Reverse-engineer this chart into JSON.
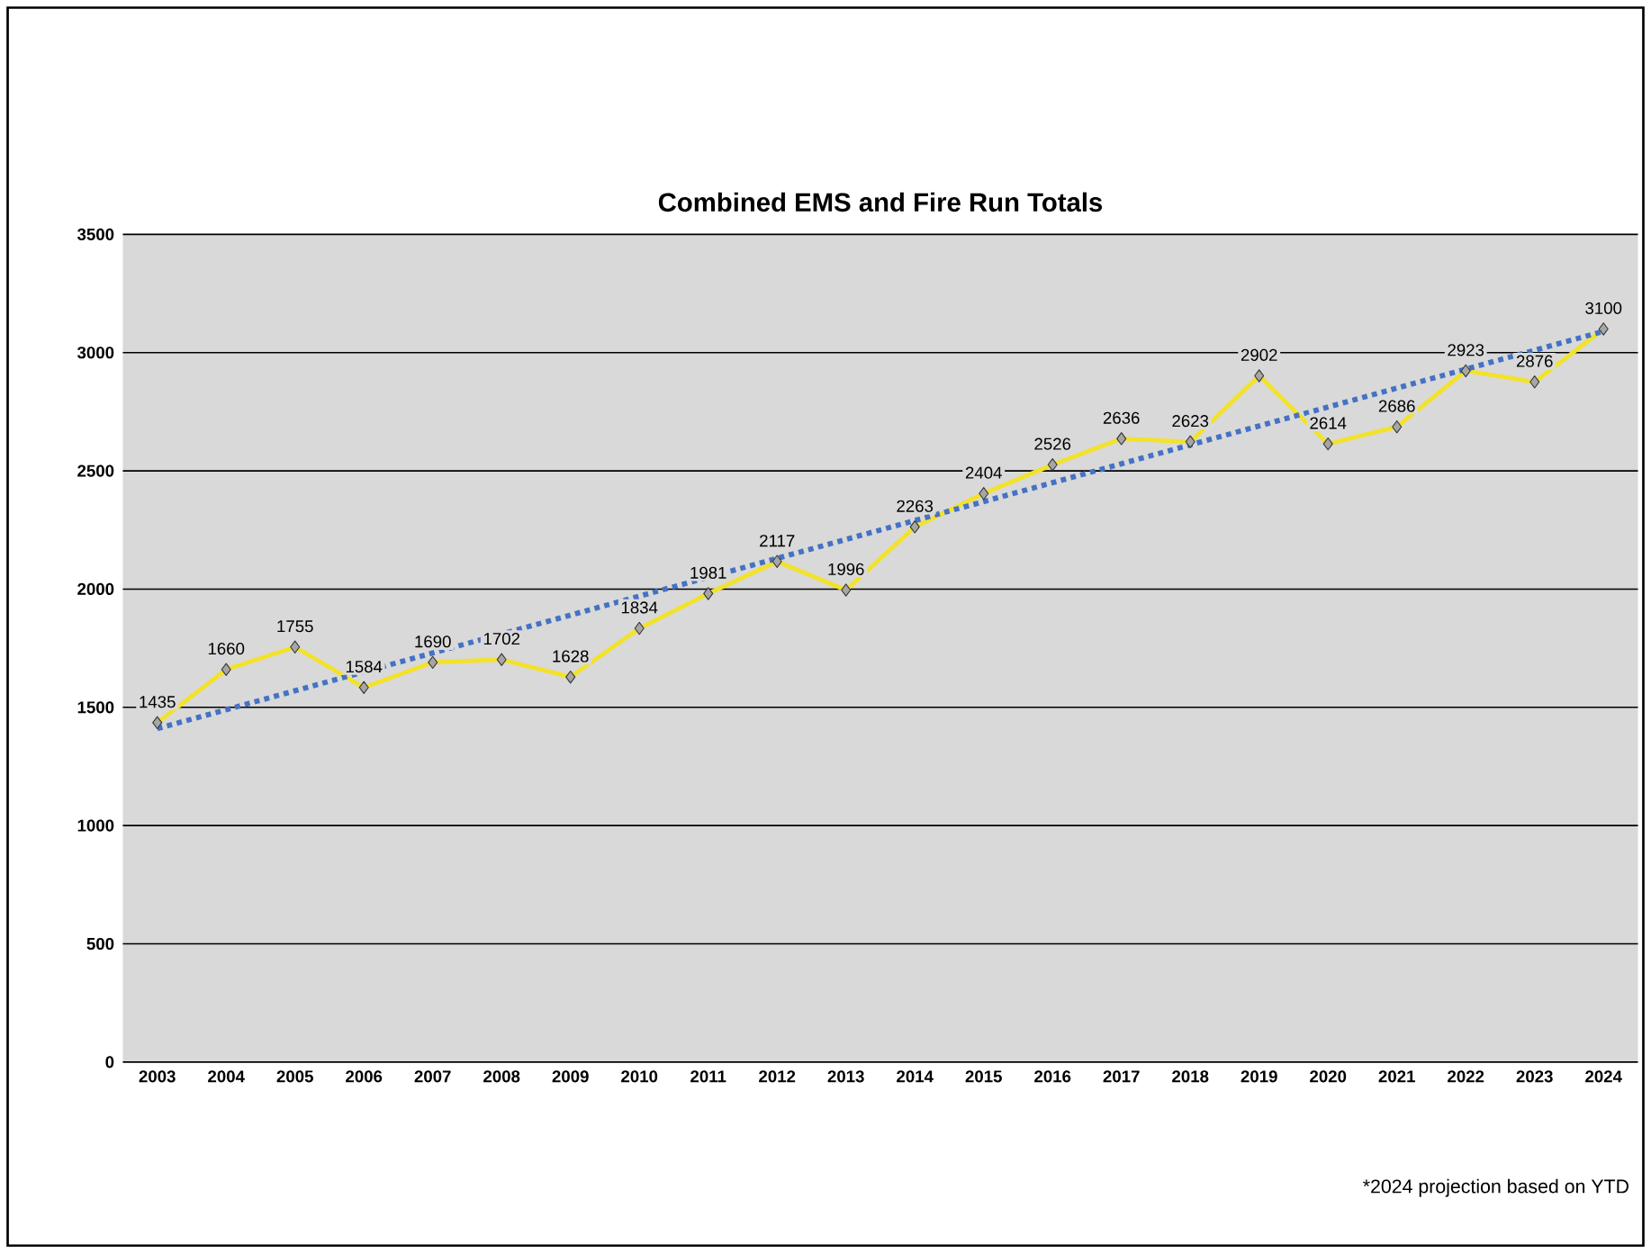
{
  "chart_data": {
    "type": "line",
    "title": "Combined EMS and Fire Run Totals",
    "x": [
      2003,
      2004,
      2005,
      2006,
      2007,
      2008,
      2009,
      2010,
      2011,
      2012,
      2013,
      2014,
      2015,
      2016,
      2017,
      2018,
      2019,
      2020,
      2021,
      2022,
      2023,
      2024
    ],
    "series": [
      {
        "color": "#f2e22c",
        "marker": "diamond",
        "values": [
          1435,
          1660,
          1755,
          1584,
          1690,
          1702,
          1628,
          1834,
          1981,
          2117,
          1996,
          2263,
          2404,
          2526,
          2636,
          2623,
          2902,
          2614,
          2686,
          2923,
          2876,
          3100
        ],
        "value_labels": [
          "1435",
          "1660",
          "1755",
          "1584",
          "1690",
          "1702",
          "1628",
          "1834",
          "1981",
          "2117",
          "1996",
          "2263",
          "2404",
          "2526",
          "2636",
          "2623",
          "2902",
          "2614",
          "2686",
          "2923",
          "2876",
          "3100"
        ]
      },
      {
        "type": "line",
        "color": "#4472c4",
        "line_style": "dotted",
        "x": [
          2003,
          2024
        ],
        "values": [
          1410,
          3090
        ]
      }
    ],
    "xlim": [
      2002.5,
      2024.5
    ],
    "xticks": [
      2003,
      2004,
      2005,
      2006,
      2007,
      2008,
      2009,
      2010,
      2011,
      2012,
      2013,
      2014,
      2015,
      2016,
      2017,
      2018,
      2019,
      2020,
      2021,
      2022,
      2023,
      2024
    ],
    "ylim": [
      0,
      3500
    ],
    "yticks": [
      0,
      500,
      1000,
      1500,
      2000,
      2500,
      3000,
      3500
    ],
    "grid": "y",
    "annotations": [
      "*2024 projection based on YTD"
    ]
  }
}
